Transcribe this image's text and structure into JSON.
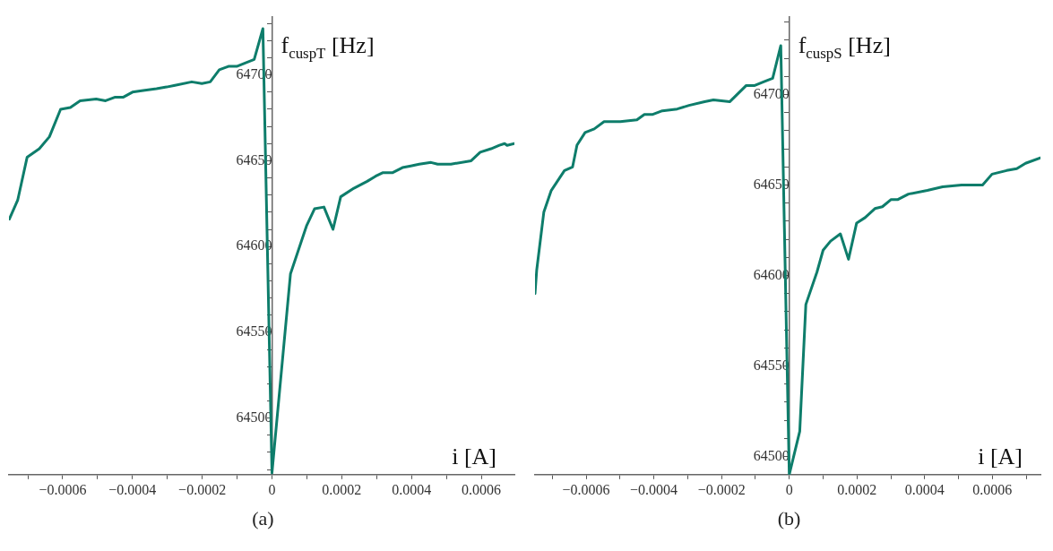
{
  "chart_data": [
    {
      "type": "line",
      "xlabel": "i [A]",
      "ylabel": "f$_{cuspT}$ [Hz]",
      "annotations": [
        "(a)"
      ],
      "marker": "none",
      "line_style": "solid",
      "x": [
        -0.000753,
        -0.000729,
        -0.000702,
        -0.000667,
        -0.000638,
        -0.000606,
        -0.000578,
        -0.00055,
        -0.000504,
        -0.000477,
        -0.000451,
        -0.000427,
        -0.0004,
        -0.000369,
        -0.000331,
        -0.000302,
        -0.000278,
        -0.00023,
        -0.000201,
        -0.000177,
        -0.000151,
        -0.000125,
        -0.000101,
        -7.7e-05,
        -5.1e-05,
        -2.6e-05,
        0,
        5.3e-05,
        9.9e-05,
        0.000122,
        0.000149,
        0.000175,
        0.000197,
        0.000235,
        0.000273,
        0.000297,
        0.000317,
        0.000345,
        0.000374,
        0.000398,
        0.000422,
        0.000456,
        0.000475,
        0.000513,
        0.000571,
        0.000597,
        0.000628,
        0.000652,
        0.000667,
        0.000674,
        0.000695
      ],
      "series": [
        {
          "color": "#0e7d6b",
          "values": [
            64616,
            64627,
            64652,
            64657,
            64664,
            64680,
            64681,
            64685,
            64686,
            64685,
            64687,
            64687,
            64690,
            64691,
            64692,
            64693,
            64694,
            64696,
            64695,
            64696,
            64703,
            64705,
            64705,
            64707,
            64709,
            64727,
            64468,
            64584,
            64612,
            64622,
            64623,
            64610,
            64629,
            64634,
            64638,
            64641,
            64643,
            64643,
            64646,
            64647,
            64648,
            64649,
            64648,
            64648,
            64650,
            64655,
            64657,
            64659,
            64660,
            64659,
            64660
          ]
        }
      ],
      "xlim": [
        -0.000754,
        0.000695
      ],
      "ylim": [
        64467,
        64734
      ],
      "xticks": [
        {
          "value": -0.0007,
          "label": null
        },
        {
          "value": -0.0006,
          "label": "−0.0006"
        },
        {
          "value": -0.0005,
          "label": null
        },
        {
          "value": -0.0004,
          "label": "−0.0004"
        },
        {
          "value": -0.0003,
          "label": null
        },
        {
          "value": -0.0002,
          "label": "−0.0002"
        },
        {
          "value": -0.0001,
          "label": null
        },
        0,
        {
          "value": 0.0001,
          "label": null
        },
        0.0002,
        {
          "value": 0.0003,
          "label": null
        },
        0.0004,
        {
          "value": 0.0005,
          "label": null
        },
        0.0006
      ],
      "yticks": [
        {
          "value": 64470,
          "label": null
        },
        {
          "value": 64480,
          "label": null
        },
        {
          "value": 64490,
          "label": null
        },
        64500,
        {
          "value": 64510,
          "label": null
        },
        {
          "value": 64520,
          "label": null
        },
        {
          "value": 64530,
          "label": null
        },
        {
          "value": 64540,
          "label": null
        },
        64550,
        {
          "value": 64560,
          "label": null
        },
        {
          "value": 64570,
          "label": null
        },
        {
          "value": 64580,
          "label": null
        },
        {
          "value": 64590,
          "label": null
        },
        64600,
        {
          "value": 64610,
          "label": null
        },
        {
          "value": 64620,
          "label": null
        },
        {
          "value": 64630,
          "label": null
        },
        {
          "value": 64640,
          "label": null
        },
        64650,
        {
          "value": 64660,
          "label": null
        },
        {
          "value": 64670,
          "label": null
        },
        {
          "value": 64680,
          "label": null
        },
        {
          "value": 64690,
          "label": null
        },
        64700,
        {
          "value": 64710,
          "label": null
        },
        {
          "value": 64720,
          "label": null
        },
        {
          "value": 64730,
          "label": null
        }
      ]
    },
    {
      "type": "line",
      "xlabel": "i [A]",
      "ylabel": "f$_{cuspS}$ [Hz]",
      "annotations": [
        "(b)"
      ],
      "marker": "none",
      "line_style": "solid",
      "x": [
        -0.000751,
        -0.000746,
        -0.000725,
        -0.000703,
        -0.000664,
        -0.00064,
        -0.000627,
        -0.000603,
        -0.000576,
        -0.000547,
        -0.000499,
        -0.00045,
        -0.000428,
        -0.000403,
        -0.000375,
        -0.000331,
        -0.000296,
        -0.00025,
        -0.000224,
        -0.000176,
        -0.000127,
        -0.000102,
        -7.6e-05,
        -4.9e-05,
        -2.5e-05,
        0,
        3.1e-05,
        4.9e-05,
        8.2e-05,
        0.0001,
        0.000122,
        0.000151,
        0.000175,
        0.000199,
        0.000224,
        0.000253,
        0.000275,
        0.000301,
        0.000321,
        0.000352,
        0.000408,
        0.000453,
        0.000509,
        0.000571,
        0.000599,
        0.000642,
        0.000672,
        0.000698,
        0.000742
      ],
      "series": [
        {
          "color": "#0e7d6b",
          "values": [
            64590,
            64603,
            64635,
            64647,
            64658,
            64660,
            64672,
            64679,
            64681,
            64685,
            64685,
            64686,
            64689,
            64689,
            64691,
            64692,
            64694,
            64696,
            64697,
            64696,
            64705,
            64705,
            64707,
            64709,
            64727,
            64490,
            64514,
            64584,
            64602,
            64614,
            64619,
            64623,
            64609,
            64629,
            64632,
            64637,
            64638,
            64642,
            64642,
            64645,
            64647,
            64649,
            64650,
            64650,
            64656,
            64658,
            64659,
            64662,
            64665
          ]
        }
      ],
      "xlim": [
        -0.000751,
        0.000742
      ],
      "ylim": [
        64490,
        64743
      ],
      "xticks": [
        {
          "value": -0.0007,
          "label": null
        },
        {
          "value": -0.0006,
          "label": "−0.0006"
        },
        {
          "value": -0.0005,
          "label": null
        },
        {
          "value": -0.0004,
          "label": "−0.0004"
        },
        {
          "value": -0.0003,
          "label": null
        },
        {
          "value": -0.0002,
          "label": "−0.0002"
        },
        {
          "value": -0.0001,
          "label": null
        },
        0,
        {
          "value": 0.0001,
          "label": null
        },
        0.0002,
        {
          "value": 0.0003,
          "label": null
        },
        0.0004,
        {
          "value": 0.0005,
          "label": null
        },
        0.0006,
        {
          "value": 0.0007,
          "label": null
        }
      ],
      "yticks": [
        {
          "value": 64490,
          "label": null
        },
        64500,
        {
          "value": 64510,
          "label": null
        },
        {
          "value": 64520,
          "label": null
        },
        {
          "value": 64530,
          "label": null
        },
        {
          "value": 64540,
          "label": null
        },
        64550,
        {
          "value": 64560,
          "label": null
        },
        {
          "value": 64570,
          "label": null
        },
        {
          "value": 64580,
          "label": null
        },
        {
          "value": 64590,
          "label": null
        },
        64600,
        {
          "value": 64610,
          "label": null
        },
        {
          "value": 64620,
          "label": null
        },
        {
          "value": 64630,
          "label": null
        },
        {
          "value": 64640,
          "label": null
        },
        64650,
        {
          "value": 64660,
          "label": null
        },
        {
          "value": 64670,
          "label": null
        },
        {
          "value": 64680,
          "label": null
        },
        {
          "value": 64690,
          "label": null
        },
        64700,
        {
          "value": 64710,
          "label": null
        },
        {
          "value": 64720,
          "label": null
        },
        {
          "value": 64730,
          "label": null
        },
        {
          "value": 64740,
          "label": null
        }
      ]
    }
  ]
}
